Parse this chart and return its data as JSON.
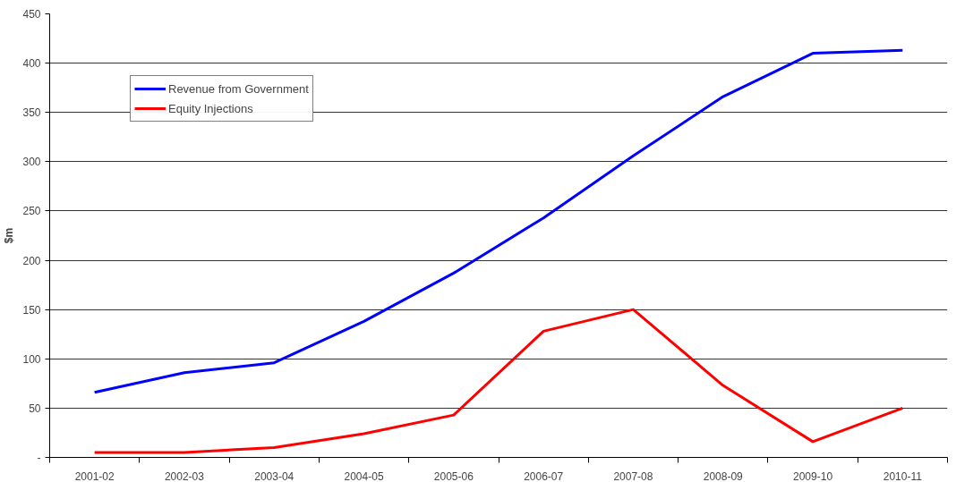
{
  "chart_data": {
    "type": "line",
    "ylabel": "$m",
    "categories": [
      "2001-02",
      "2002-03",
      "2003-04",
      "2004-05",
      "2005-06",
      "2006-07",
      "2007-08",
      "2008-09",
      "2009-10",
      "2010-11"
    ],
    "series": [
      {
        "name": "Revenue from Government",
        "color": "#0000ff",
        "values": [
          66,
          86,
          96,
          138,
          187,
          243,
          306,
          366,
          410,
          413
        ]
      },
      {
        "name": "Equity Injections",
        "color": "#ff0000",
        "values": [
          5,
          5,
          10,
          24,
          43,
          128,
          150,
          73,
          16,
          50
        ]
      }
    ],
    "ylim": [
      0,
      450
    ],
    "yticks": [
      {
        "value": 0,
        "label": "-"
      },
      50,
      100,
      150,
      200,
      250,
      300,
      350,
      400,
      450
    ],
    "grid": "y",
    "legend": "top left",
    "marker": "none",
    "line_style": "solid"
  }
}
